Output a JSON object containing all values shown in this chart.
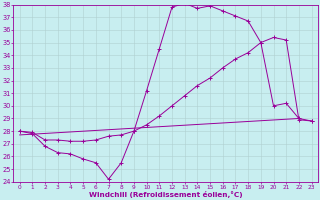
{
  "xlabel": "Windchill (Refroidissement éolien,°C)",
  "bg_color": "#c8eef0",
  "grid_color": "#b0d0d0",
  "line_color": "#990099",
  "xlim": [
    -0.5,
    23.5
  ],
  "ylim": [
    24,
    38
  ],
  "yticks": [
    24,
    25,
    26,
    27,
    28,
    29,
    30,
    31,
    32,
    33,
    34,
    35,
    36,
    37,
    38
  ],
  "xticks": [
    0,
    1,
    2,
    3,
    4,
    5,
    6,
    7,
    8,
    9,
    10,
    11,
    12,
    13,
    14,
    15,
    16,
    17,
    18,
    19,
    20,
    21,
    22,
    23
  ],
  "line1_x": [
    0,
    1,
    2,
    3,
    4,
    5,
    6,
    7,
    8,
    9,
    10,
    11,
    12,
    13,
    14,
    15,
    16,
    17,
    18,
    19,
    20,
    21,
    22,
    23
  ],
  "line1_y": [
    28.0,
    27.8,
    26.8,
    26.3,
    26.2,
    25.8,
    25.5,
    24.2,
    25.5,
    28.0,
    31.2,
    34.5,
    37.8,
    38.1,
    37.7,
    37.9,
    37.5,
    37.1,
    36.7,
    35.0,
    30.0,
    30.2,
    29.0,
    28.8
  ],
  "line2_x": [
    0,
    1,
    2,
    3,
    4,
    5,
    6,
    7,
    8,
    9,
    10,
    11,
    12,
    13,
    14,
    15,
    16,
    17,
    18,
    19,
    20,
    21,
    22,
    23
  ],
  "line2_y": [
    28.0,
    27.9,
    27.3,
    27.3,
    27.2,
    27.2,
    27.3,
    27.6,
    27.7,
    28.0,
    28.5,
    29.2,
    30.0,
    30.8,
    31.6,
    32.2,
    33.0,
    33.7,
    34.2,
    35.0,
    35.4,
    35.2,
    28.9,
    28.8
  ],
  "line3_x": [
    0,
    22
  ],
  "line3_y": [
    27.7,
    29.0
  ]
}
